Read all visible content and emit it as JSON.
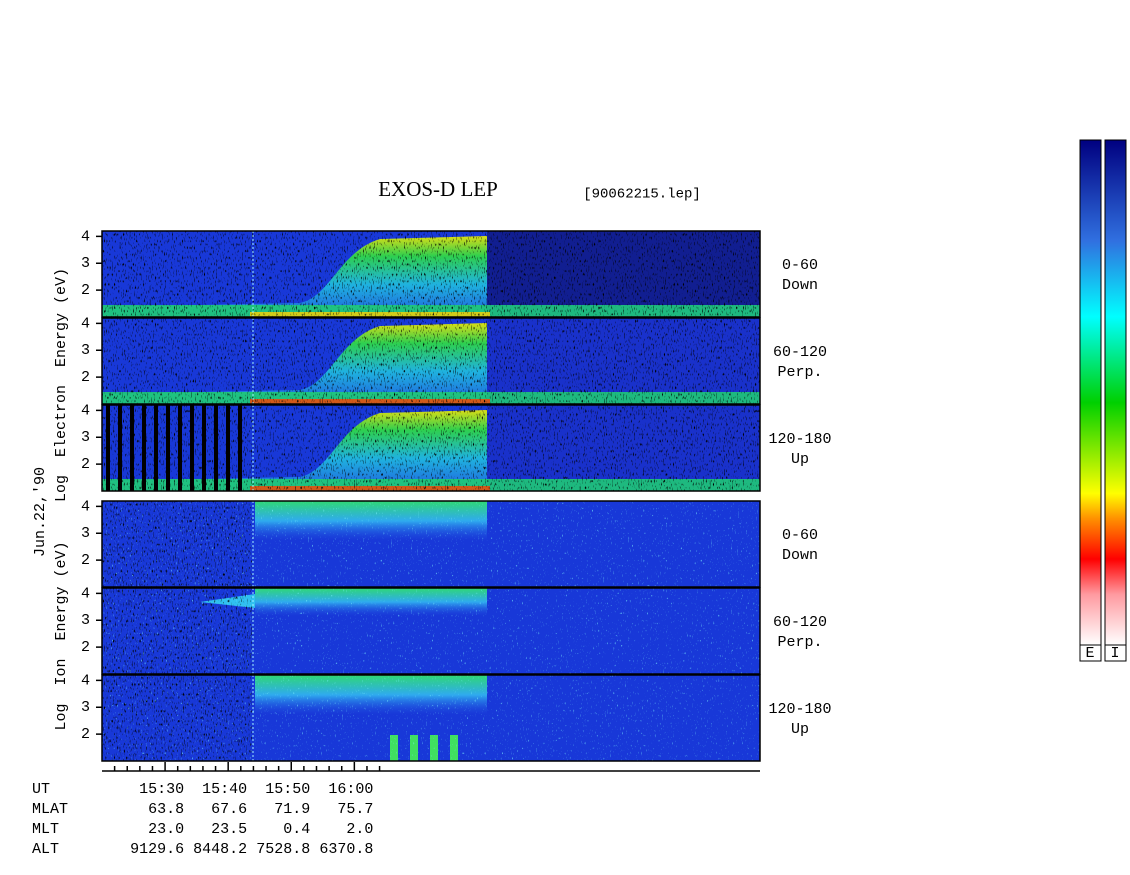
{
  "title": "EXOS-D LEP",
  "file": "[90062215.lep]",
  "date_label": "Jun.22,'90",
  "ylim": [
    1,
    4.2
  ],
  "yticks": [
    2,
    3,
    4
  ],
  "electron": {
    "ylabel": "Log  Electron  Energy (eV)",
    "panels": [
      {
        "pitch": "0-60",
        "direction": "Down"
      },
      {
        "pitch": "60-120",
        "direction": "Perp."
      },
      {
        "pitch": "120-180",
        "direction": "Up"
      }
    ]
  },
  "ion": {
    "ylabel": "Log  Ion  Energy (eV)",
    "panels": [
      {
        "pitch": "0-60",
        "direction": "Down"
      },
      {
        "pitch": "60-120",
        "direction": "Perp."
      },
      {
        "pitch": "120-180",
        "direction": "Up"
      }
    ]
  },
  "xaxis": {
    "label": "UT",
    "xlim": [
      920,
      1024.3
    ],
    "xticks": [
      {
        "value": 930,
        "label": "15:30"
      },
      {
        "value": 940,
        "label": "15:40"
      },
      {
        "value": 950,
        "label": "15:50"
      },
      {
        "value": 960,
        "label": "16:00"
      }
    ],
    "minor_xticks": [
      922,
      924,
      926,
      928,
      932,
      934,
      936,
      938,
      942,
      944,
      946,
      948,
      952,
      954,
      956,
      958,
      962,
      964
    ]
  },
  "orbit": [
    {
      "label": "MLAT",
      "values": [
        "63.8",
        "67.6",
        "71.9",
        "75.7"
      ]
    },
    {
      "label": "MLT",
      "values": [
        "23.0",
        "23.5",
        "0.4",
        "2.0"
      ]
    },
    {
      "label": "ALT",
      "values": [
        "9129.6",
        "8448.2",
        "7528.8",
        "6370.8"
      ]
    }
  ],
  "colorbars": [
    "E",
    "I"
  ]
}
